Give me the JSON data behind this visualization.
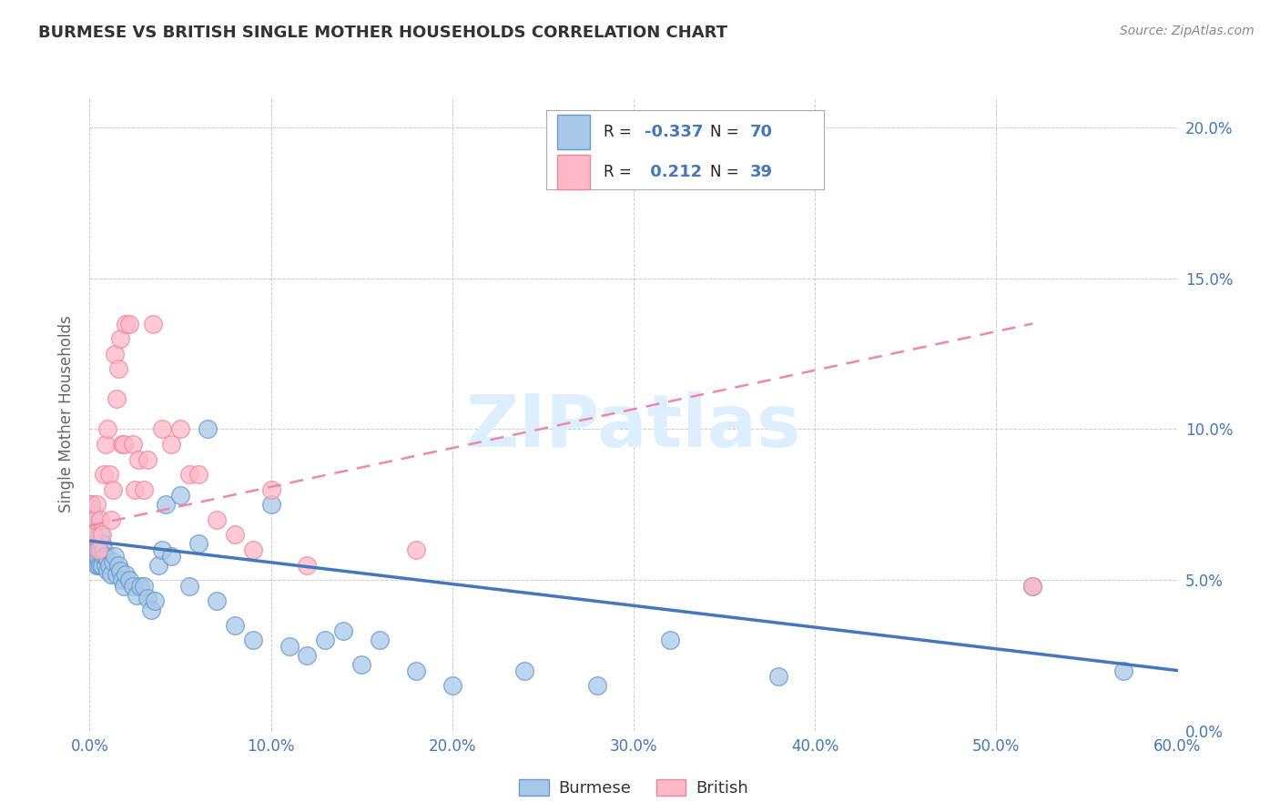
{
  "title": "BURMESE VS BRITISH SINGLE MOTHER HOUSEHOLDS CORRELATION CHART",
  "source": "Source: ZipAtlas.com",
  "ylabel": "Single Mother Households",
  "watermark": "ZIPatlas",
  "xlim": [
    0.0,
    0.6
  ],
  "ylim": [
    0.0,
    0.21
  ],
  "xticks": [
    0.0,
    0.1,
    0.2,
    0.3,
    0.4,
    0.5,
    0.6
  ],
  "yticks": [
    0.0,
    0.05,
    0.1,
    0.15,
    0.2
  ],
  "xtick_labels": [
    "0.0%",
    "10.0%",
    "20.0%",
    "30.0%",
    "40.0%",
    "50.0%",
    "60.0%"
  ],
  "ytick_labels_right": [
    "0.0%",
    "5.0%",
    "10.0%",
    "15.0%",
    "20.0%"
  ],
  "blue_fill": "#A8C8E8",
  "blue_edge": "#6699CC",
  "pink_fill": "#FFB8C8",
  "pink_edge": "#EE8899",
  "line_blue_color": "#4477BB",
  "line_pink_color": "#EE88AA",
  "legend_R_blue": "-0.337",
  "legend_N_blue": "70",
  "legend_R_pink": "0.212",
  "legend_N_pink": "39",
  "blue_line_x": [
    0.0,
    0.6
  ],
  "blue_line_y": [
    0.063,
    0.02
  ],
  "pink_line_x": [
    0.0,
    0.52
  ],
  "pink_line_y": [
    0.068,
    0.135
  ],
  "burmese_x": [
    0.001,
    0.001,
    0.002,
    0.002,
    0.002,
    0.003,
    0.003,
    0.003,
    0.004,
    0.004,
    0.004,
    0.005,
    0.005,
    0.005,
    0.006,
    0.006,
    0.006,
    0.007,
    0.007,
    0.007,
    0.008,
    0.008,
    0.009,
    0.009,
    0.01,
    0.01,
    0.011,
    0.012,
    0.013,
    0.014,
    0.015,
    0.016,
    0.017,
    0.018,
    0.019,
    0.02,
    0.022,
    0.024,
    0.026,
    0.028,
    0.03,
    0.032,
    0.034,
    0.036,
    0.038,
    0.04,
    0.042,
    0.045,
    0.05,
    0.055,
    0.06,
    0.065,
    0.07,
    0.08,
    0.09,
    0.1,
    0.11,
    0.12,
    0.13,
    0.14,
    0.15,
    0.16,
    0.18,
    0.2,
    0.24,
    0.28,
    0.32,
    0.38,
    0.52,
    0.57
  ],
  "burmese_y": [
    0.075,
    0.07,
    0.068,
    0.065,
    0.072,
    0.06,
    0.058,
    0.062,
    0.055,
    0.06,
    0.058,
    0.055,
    0.06,
    0.058,
    0.055,
    0.06,
    0.065,
    0.058,
    0.062,
    0.055,
    0.058,
    0.06,
    0.055,
    0.058,
    0.053,
    0.057,
    0.055,
    0.052,
    0.056,
    0.058,
    0.052,
    0.055,
    0.053,
    0.05,
    0.048,
    0.052,
    0.05,
    0.048,
    0.045,
    0.048,
    0.048,
    0.044,
    0.04,
    0.043,
    0.055,
    0.06,
    0.075,
    0.058,
    0.078,
    0.048,
    0.062,
    0.1,
    0.043,
    0.035,
    0.03,
    0.075,
    0.028,
    0.025,
    0.03,
    0.033,
    0.022,
    0.03,
    0.02,
    0.015,
    0.02,
    0.015,
    0.03,
    0.018,
    0.048,
    0.02
  ],
  "british_x": [
    0.001,
    0.002,
    0.003,
    0.004,
    0.005,
    0.006,
    0.007,
    0.008,
    0.009,
    0.01,
    0.011,
    0.012,
    0.013,
    0.014,
    0.015,
    0.016,
    0.017,
    0.018,
    0.019,
    0.02,
    0.022,
    0.024,
    0.025,
    0.027,
    0.03,
    0.032,
    0.035,
    0.04,
    0.045,
    0.05,
    0.055,
    0.06,
    0.07,
    0.08,
    0.09,
    0.1,
    0.12,
    0.18,
    0.52
  ],
  "british_y": [
    0.075,
    0.065,
    0.07,
    0.075,
    0.06,
    0.07,
    0.065,
    0.085,
    0.095,
    0.1,
    0.085,
    0.07,
    0.08,
    0.125,
    0.11,
    0.12,
    0.13,
    0.095,
    0.095,
    0.135,
    0.135,
    0.095,
    0.08,
    0.09,
    0.08,
    0.09,
    0.135,
    0.1,
    0.095,
    0.1,
    0.085,
    0.085,
    0.07,
    0.065,
    0.06,
    0.08,
    0.055,
    0.06,
    0.048
  ],
  "background_color": "#FFFFFF",
  "grid_color": "#CCCCCC",
  "title_color": "#333333",
  "axis_tick_color": "#4477BB",
  "ylabel_color": "#666666",
  "source_color": "#888888",
  "watermark_color": "#DDEEFF"
}
